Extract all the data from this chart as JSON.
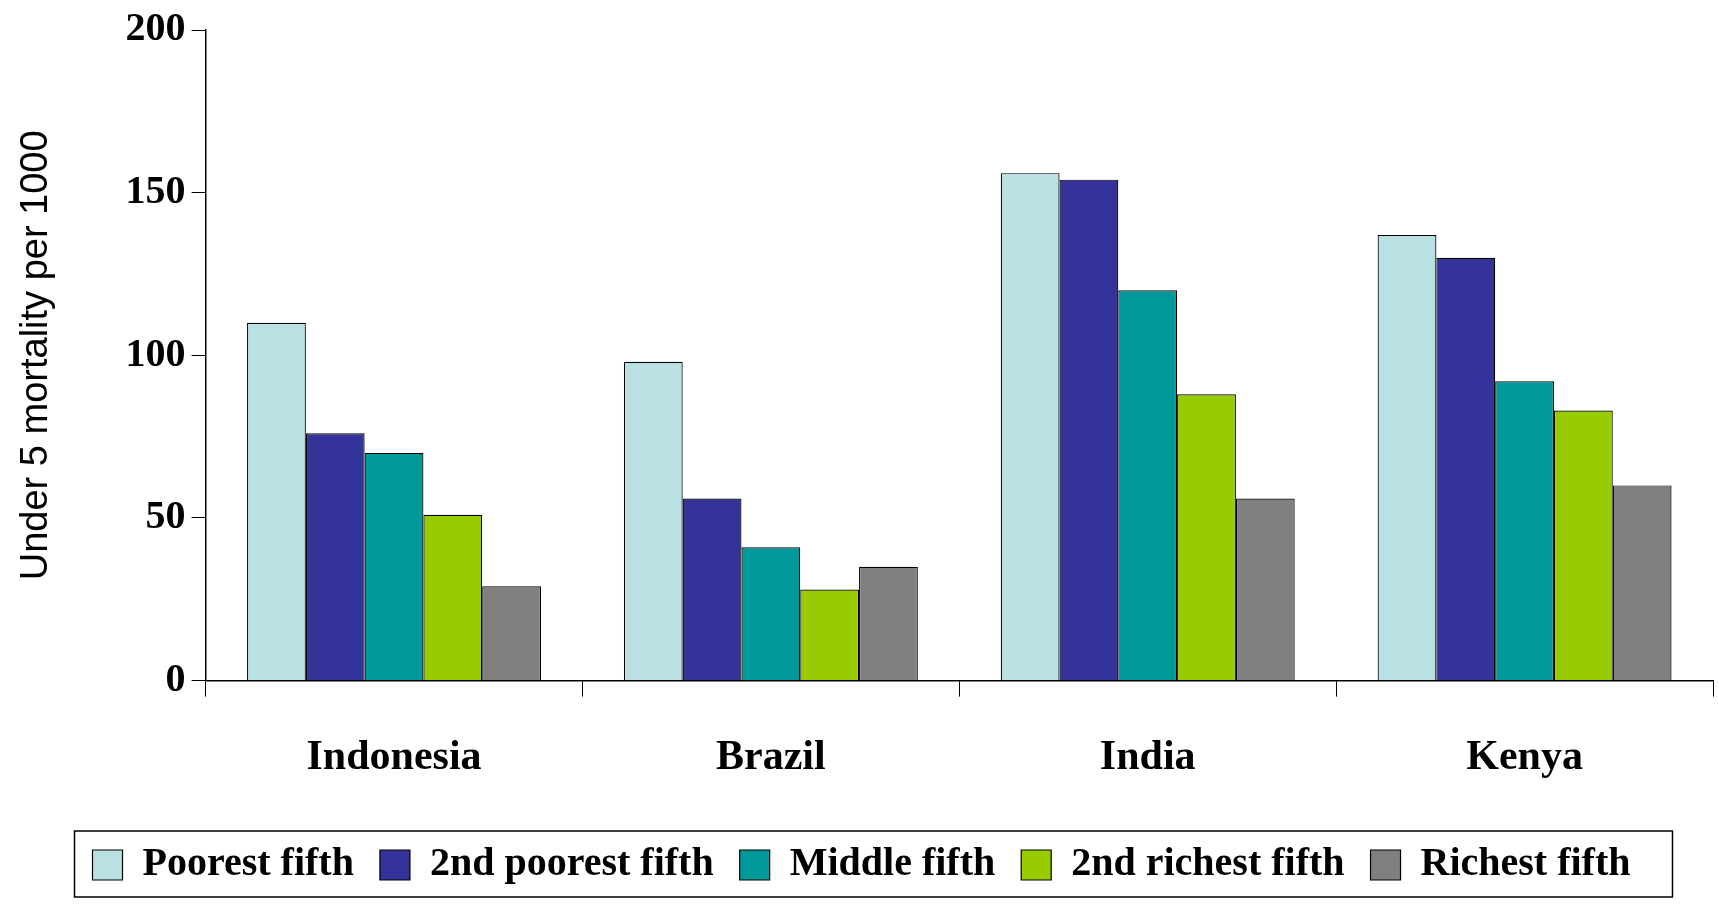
{
  "chart_data": {
    "type": "bar",
    "ylabel": "Under 5 mortality per 1000",
    "categories": [
      "Indonesia",
      "Brazil",
      "India",
      "Kenya"
    ],
    "series": [
      {
        "name": "Poorest fifth",
        "color": "#b9e0e3",
        "values": [
          110,
          98,
          156,
          137
        ]
      },
      {
        "name": "2nd poorest fifth",
        "color": "#333399",
        "values": [
          76,
          56,
          154,
          130
        ]
      },
      {
        "name": "Middle fifth",
        "color": "#009999",
        "values": [
          70,
          41,
          120,
          92
        ]
      },
      {
        "name": "2nd richest fifth",
        "color": "#99cc00",
        "values": [
          51,
          28,
          88,
          83
        ]
      },
      {
        "name": "Richest fifth",
        "color": "#808080",
        "values": [
          29,
          35,
          56,
          60
        ]
      }
    ],
    "ylim": [
      0,
      200
    ],
    "yticks": [
      0,
      50,
      100,
      150,
      200
    ],
    "grid": false,
    "legend": "bottom"
  }
}
